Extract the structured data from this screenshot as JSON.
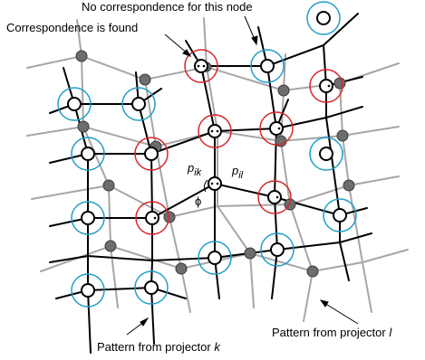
{
  "labels": {
    "no_correspondence": "No correspondence for this node",
    "correspondence_found": "Correspondence is found",
    "pattern_k_prefix": "Pattern from projector ",
    "pattern_k_var": "k",
    "pattern_l_prefix": "Pattern from projector ",
    "pattern_l_var": "l",
    "p_ik_base": "p",
    "p_ik_sub": "ik",
    "p_il_base": "p",
    "p_il_sub": "il",
    "phi": "ϕ"
  },
  "colors": {
    "pattern_k": "#000000",
    "pattern_l": "#a6a6a6",
    "node_fill": "#ffffff",
    "dot_fill": "#6d6d6d",
    "correspondence_circle": "#d62728",
    "no_correspondence_circle": "#1f9fc8"
  }
}
